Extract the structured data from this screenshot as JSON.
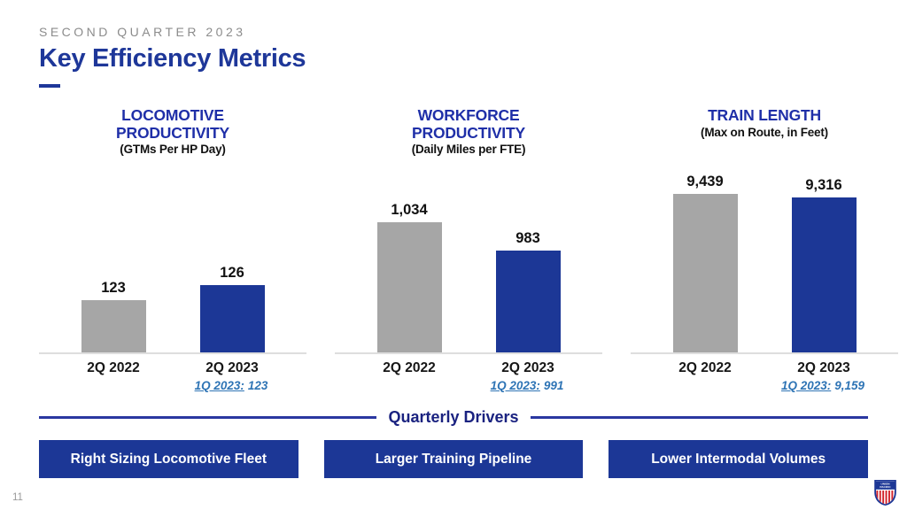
{
  "slide": {
    "kicker": "SECOND QUARTER 2023",
    "title": "Key Efficiency Metrics",
    "page_number": "11",
    "logo": {
      "name": "union-pacific-shield-logo",
      "line1": "UNION",
      "line2": "PACIFIC"
    }
  },
  "colors": {
    "title_blue": "#1E3799",
    "chart_title_blue": "#1F2FA8",
    "bar_blue": "#1C3796",
    "bar_gray": "#A6A6A6",
    "footnote_blue": "#2E74B5",
    "divider_navy": "#1A2280",
    "kicker_gray": "#8C8C8C",
    "driver_box_blue": "#1C3796"
  },
  "chart_data": [
    {
      "type": "bar",
      "title": "LOCOMOTIVE PRODUCTIVITY",
      "subtitle": "(GTMs Per HP Day)",
      "categories": [
        "2Q 2022",
        "2Q 2023"
      ],
      "values": [
        123,
        126
      ],
      "value_labels": [
        "123",
        "126"
      ],
      "bar_colors": [
        "#A6A6A6",
        "#1C3796"
      ],
      "ylim": [
        112,
        150
      ],
      "grid": false,
      "footnote_label": "1Q 2023:",
      "footnote_value": "123"
    },
    {
      "type": "bar",
      "title": "WORKFORCE PRODUCTIVITY",
      "subtitle": "(Daily Miles per FTE)",
      "categories": [
        "2Q 2022",
        "2Q 2023"
      ],
      "values": [
        1034,
        983
      ],
      "value_labels": [
        "1,034",
        "983"
      ],
      "bar_colors": [
        "#A6A6A6",
        "#1C3796"
      ],
      "ylim": [
        800,
        1127
      ],
      "grid": false,
      "footnote_label": "1Q 2023:",
      "footnote_value": "991"
    },
    {
      "type": "bar",
      "title": "TRAIN LENGTH",
      "subtitle": "(Max on Route, in Feet)",
      "categories": [
        "2Q 2022",
        "2Q 2023"
      ],
      "values": [
        9439,
        9316
      ],
      "value_labels": [
        "9,439",
        "9,316"
      ],
      "bar_colors": [
        "#A6A6A6",
        "#1C3796"
      ],
      "ylim": [
        3932,
        10240
      ],
      "grid": false,
      "footnote_label": "1Q 2023:",
      "footnote_value": "9,159"
    }
  ],
  "quarterly_drivers": {
    "heading": "Quarterly Drivers",
    "items": [
      "Right Sizing Locomotive Fleet",
      "Larger Training Pipeline",
      "Lower Intermodal Volumes"
    ]
  }
}
